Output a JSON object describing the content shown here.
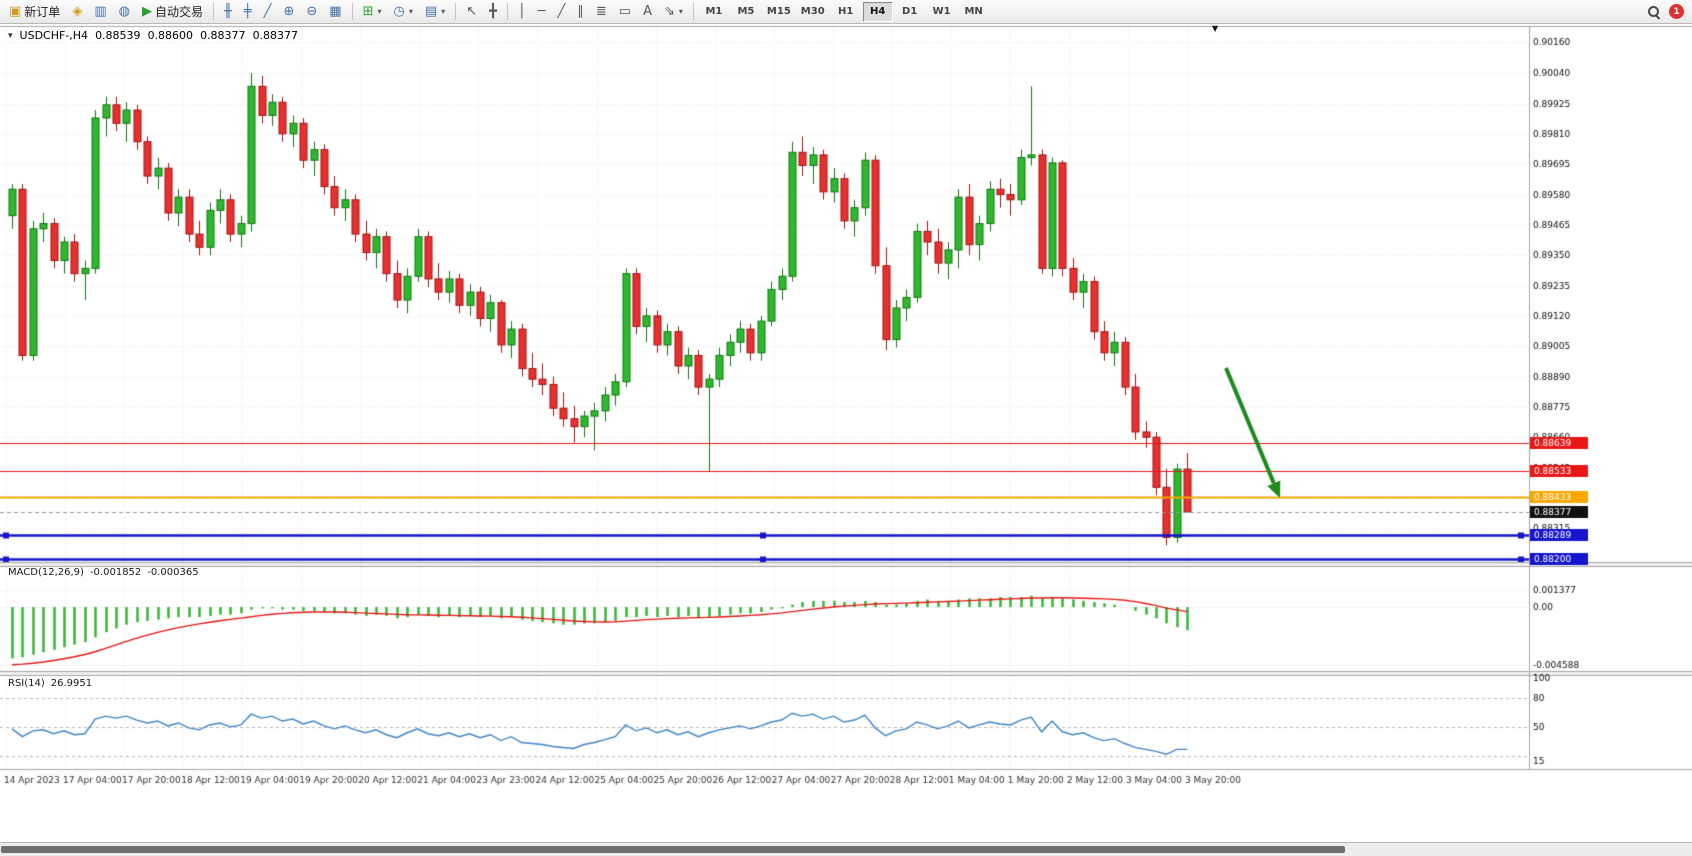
{
  "toolbar": {
    "new_order_label": "新订单",
    "auto_trading_label": "自动交易",
    "timeframes": [
      "M1",
      "M5",
      "M15",
      "M30",
      "H1",
      "H4",
      "D1",
      "W1",
      "MN"
    ],
    "active_timeframe": "H4",
    "notification_count": "1",
    "icons": {
      "new_order": "▣",
      "metaeditor": "◈",
      "charts": "▥",
      "market_watch": "◍",
      "autoplay": "▶",
      "bar_chart": "╫",
      "candle_chart": "╪",
      "line_chart": "╱",
      "zoom_in": "⊕",
      "zoom_out": "⊖",
      "tile_windows": "▦",
      "indicators": "⊞",
      "periods": "◷",
      "templates": "▤",
      "cursor": "↖",
      "crosshair": "╋",
      "vertical_line": "│",
      "horizontal_line": "─",
      "trendline": "╱",
      "channel": "∥",
      "fibonacci": "≣",
      "shapes": "▭",
      "text_tool": "A",
      "arrows_tool": "⇘",
      "dropdown": "▾"
    }
  },
  "chart": {
    "symbol_period": "USDCHF-,H4",
    "ohlc": {
      "open": "0.88539",
      "high": "0.88600",
      "low": "0.88377",
      "close": "0.88377"
    },
    "shift_marker": "▼",
    "price_scale_labels": [
      "0.90160",
      "0.90040",
      "0.89925",
      "0.89810",
      "0.89695",
      "0.89580",
      "0.89465",
      "0.89350",
      "0.89235",
      "0.89120",
      "0.89005",
      "0.88890",
      "0.88775",
      "0.88660",
      "0.88545",
      "0.88430",
      "0.88315",
      "0.88200"
    ],
    "time_labels": [
      "14 Apr 2023",
      "17 Apr 04:00",
      "17 Apr 20:00",
      "18 Apr 12:00",
      "19 Apr 04:00",
      "19 Apr 20:00",
      "20 Apr 12:00",
      "21 Apr 04:00",
      "23 Apr 23:00",
      "24 Apr 12:00",
      "25 Apr 04:00",
      "25 Apr 20:00",
      "26 Apr 12:00",
      "27 Apr 04:00",
      "27 Apr 20:00",
      "28 Apr 12:00",
      "1 May 04:00",
      "1 May 20:00",
      "2 May 12:00",
      "3 May 04:00",
      "3 May 20:00"
    ],
    "hlines": [
      {
        "price": 0.88639,
        "label": "0.88639",
        "color": "#e81717",
        "width": 1,
        "handles": false
      },
      {
        "price": 0.88533,
        "label": "0.88533",
        "color": "#e81717",
        "width": 1,
        "handles": false
      },
      {
        "price": 0.88433,
        "label": "0.88433",
        "color": "#f7a800",
        "width": 2,
        "handles": false
      },
      {
        "price": 0.88289,
        "label": "0.88289",
        "color": "#1515cc",
        "width": 2.5,
        "handles": true
      },
      {
        "price": 0.882,
        "label": "0.88200",
        "color": "#1515cc",
        "width": 2.5,
        "handles": true
      }
    ],
    "current_price": {
      "value": 0.88377,
      "label": "0.88377",
      "badge_color": "#101010"
    },
    "arrow": {
      "color": "#1c8a1c",
      "direction": "down-right"
    }
  },
  "macd": {
    "label": "MACD(12,26,9)",
    "main_value": "-0.001852",
    "signal_value": "-0.000365",
    "scale_labels": [
      "0.001377",
      "0.00",
      "-0.004588"
    ],
    "histogram_color": "#3cb83c",
    "signal_color": "#e81717"
  },
  "rsi": {
    "label": "RSI(14)",
    "value": "26.9951",
    "scale_labels": [
      "100",
      "80",
      "50",
      "15"
    ],
    "levels": [
      80,
      50,
      20
    ],
    "line_color": "#3f86c8"
  },
  "chart_data": {
    "type": "candlestick",
    "symbol": "USDCHF",
    "period": "H4",
    "ylim": [
      0.88187,
      0.90215
    ],
    "up_color": "#2eb82e",
    "up_border": "#137813",
    "down_color": "#e83030",
    "down_border": "#a31515",
    "candles": [
      [
        0.895,
        0.8962,
        0.8945,
        0.896
      ],
      [
        0.896,
        0.8962,
        0.8895,
        0.8897
      ],
      [
        0.8897,
        0.8948,
        0.8895,
        0.8945
      ],
      [
        0.8945,
        0.8951,
        0.894,
        0.8947
      ],
      [
        0.8947,
        0.8949,
        0.893,
        0.8933
      ],
      [
        0.8933,
        0.8942,
        0.8928,
        0.894
      ],
      [
        0.894,
        0.8943,
        0.8925,
        0.8928
      ],
      [
        0.8928,
        0.8933,
        0.8918,
        0.893
      ],
      [
        0.893,
        0.899,
        0.8928,
        0.8987
      ],
      [
        0.8987,
        0.8995,
        0.898,
        0.8992
      ],
      [
        0.8992,
        0.8995,
        0.8982,
        0.8985
      ],
      [
        0.8985,
        0.8993,
        0.8978,
        0.899
      ],
      [
        0.899,
        0.8992,
        0.8975,
        0.8978
      ],
      [
        0.8978,
        0.898,
        0.8962,
        0.8965
      ],
      [
        0.8965,
        0.8972,
        0.896,
        0.8968
      ],
      [
        0.8968,
        0.897,
        0.8948,
        0.8951
      ],
      [
        0.8951,
        0.896,
        0.8946,
        0.8957
      ],
      [
        0.8957,
        0.896,
        0.894,
        0.8943
      ],
      [
        0.8943,
        0.8948,
        0.8935,
        0.8938
      ],
      [
        0.8938,
        0.8955,
        0.8935,
        0.8952
      ],
      [
        0.8952,
        0.896,
        0.8947,
        0.8956
      ],
      [
        0.8956,
        0.8958,
        0.894,
        0.8943
      ],
      [
        0.8943,
        0.895,
        0.8938,
        0.8947
      ],
      [
        0.8947,
        0.9004,
        0.8944,
        0.8999
      ],
      [
        0.8999,
        0.9003,
        0.8985,
        0.8988
      ],
      [
        0.8988,
        0.8996,
        0.8984,
        0.8993
      ],
      [
        0.8993,
        0.8995,
        0.8978,
        0.8981
      ],
      [
        0.8981,
        0.8988,
        0.8976,
        0.8985
      ],
      [
        0.8985,
        0.8987,
        0.8968,
        0.8971
      ],
      [
        0.8971,
        0.8978,
        0.8965,
        0.8975
      ],
      [
        0.8975,
        0.8977,
        0.8958,
        0.8961
      ],
      [
        0.8961,
        0.8965,
        0.895,
        0.8953
      ],
      [
        0.8953,
        0.896,
        0.8948,
        0.8956
      ],
      [
        0.8956,
        0.8958,
        0.894,
        0.8943
      ],
      [
        0.8943,
        0.8948,
        0.8933,
        0.8936
      ],
      [
        0.8936,
        0.8945,
        0.893,
        0.8942
      ],
      [
        0.8942,
        0.8944,
        0.8925,
        0.8928
      ],
      [
        0.8928,
        0.8933,
        0.8915,
        0.8918
      ],
      [
        0.8918,
        0.893,
        0.8913,
        0.8927
      ],
      [
        0.8927,
        0.8945,
        0.8925,
        0.8942
      ],
      [
        0.8942,
        0.8944,
        0.8923,
        0.8926
      ],
      [
        0.8926,
        0.8932,
        0.8918,
        0.8921
      ],
      [
        0.8921,
        0.8929,
        0.8917,
        0.8926
      ],
      [
        0.8926,
        0.8928,
        0.8913,
        0.8916
      ],
      [
        0.8916,
        0.8924,
        0.8912,
        0.8921
      ],
      [
        0.8921,
        0.8923,
        0.8908,
        0.8911
      ],
      [
        0.8911,
        0.892,
        0.8906,
        0.8917
      ],
      [
        0.8917,
        0.8918,
        0.8898,
        0.8901
      ],
      [
        0.8901,
        0.891,
        0.8896,
        0.8907
      ],
      [
        0.8907,
        0.8909,
        0.8889,
        0.8892
      ],
      [
        0.8892,
        0.8898,
        0.8885,
        0.8888
      ],
      [
        0.8888,
        0.8894,
        0.8882,
        0.8886
      ],
      [
        0.8886,
        0.8889,
        0.8874,
        0.8877
      ],
      [
        0.8877,
        0.8883,
        0.887,
        0.8873
      ],
      [
        0.8873,
        0.8878,
        0.8864,
        0.887
      ],
      [
        0.887,
        0.8876,
        0.8866,
        0.8874
      ],
      [
        0.8874,
        0.8879,
        0.8861,
        0.8876
      ],
      [
        0.8876,
        0.8885,
        0.8872,
        0.8882
      ],
      [
        0.8882,
        0.889,
        0.8878,
        0.8887
      ],
      [
        0.8887,
        0.893,
        0.8885,
        0.8928
      ],
      [
        0.8928,
        0.893,
        0.8905,
        0.8908
      ],
      [
        0.8908,
        0.8915,
        0.8902,
        0.8912
      ],
      [
        0.8912,
        0.8914,
        0.8898,
        0.8901
      ],
      [
        0.8901,
        0.8909,
        0.8897,
        0.8906
      ],
      [
        0.8906,
        0.8908,
        0.889,
        0.8893
      ],
      [
        0.8893,
        0.89,
        0.8888,
        0.8897
      ],
      [
        0.8897,
        0.8899,
        0.8882,
        0.8885
      ],
      [
        0.8885,
        0.889,
        0.8853,
        0.8888
      ],
      [
        0.8888,
        0.89,
        0.8885,
        0.8897
      ],
      [
        0.8897,
        0.8905,
        0.8893,
        0.8902
      ],
      [
        0.8902,
        0.891,
        0.8898,
        0.8907
      ],
      [
        0.8907,
        0.8909,
        0.8895,
        0.8898
      ],
      [
        0.8898,
        0.8912,
        0.8895,
        0.891
      ],
      [
        0.891,
        0.8925,
        0.8908,
        0.8922
      ],
      [
        0.8922,
        0.893,
        0.8918,
        0.8927
      ],
      [
        0.8927,
        0.8978,
        0.8925,
        0.8974
      ],
      [
        0.8974,
        0.898,
        0.8965,
        0.8969
      ],
      [
        0.8969,
        0.8976,
        0.8962,
        0.8973
      ],
      [
        0.8973,
        0.8975,
        0.8956,
        0.8959
      ],
      [
        0.8959,
        0.8968,
        0.8955,
        0.8964
      ],
      [
        0.8964,
        0.8966,
        0.8945,
        0.8948
      ],
      [
        0.8948,
        0.8956,
        0.8942,
        0.8953
      ],
      [
        0.8953,
        0.8974,
        0.895,
        0.8971
      ],
      [
        0.8971,
        0.8973,
        0.8928,
        0.8931
      ],
      [
        0.8931,
        0.8938,
        0.8899,
        0.8903
      ],
      [
        0.8903,
        0.8918,
        0.89,
        0.8915
      ],
      [
        0.8915,
        0.8922,
        0.891,
        0.8919
      ],
      [
        0.8919,
        0.8947,
        0.8917,
        0.8944
      ],
      [
        0.8944,
        0.8948,
        0.8935,
        0.894
      ],
      [
        0.894,
        0.8945,
        0.8928,
        0.8932
      ],
      [
        0.8932,
        0.894,
        0.8926,
        0.8937
      ],
      [
        0.8937,
        0.896,
        0.893,
        0.8957
      ],
      [
        0.8957,
        0.8962,
        0.8935,
        0.8939
      ],
      [
        0.8939,
        0.895,
        0.8933,
        0.8947
      ],
      [
        0.8947,
        0.8963,
        0.8944,
        0.896
      ],
      [
        0.896,
        0.8964,
        0.8953,
        0.8958
      ],
      [
        0.8958,
        0.8962,
        0.895,
        0.8956
      ],
      [
        0.8956,
        0.8975,
        0.8954,
        0.8972
      ],
      [
        0.8972,
        0.8999,
        0.8969,
        0.8973
      ],
      [
        0.8973,
        0.8975,
        0.8928,
        0.893
      ],
      [
        0.893,
        0.8972,
        0.8927,
        0.897
      ],
      [
        0.897,
        0.8971,
        0.8927,
        0.893
      ],
      [
        0.893,
        0.8934,
        0.8918,
        0.8921
      ],
      [
        0.8921,
        0.8928,
        0.8915,
        0.8925
      ],
      [
        0.8925,
        0.8927,
        0.8903,
        0.8906
      ],
      [
        0.8906,
        0.891,
        0.8895,
        0.8898
      ],
      [
        0.8898,
        0.8906,
        0.8893,
        0.8902
      ],
      [
        0.8902,
        0.8904,
        0.8882,
        0.8885
      ],
      [
        0.8885,
        0.889,
        0.8865,
        0.8868
      ],
      [
        0.8868,
        0.8872,
        0.8862,
        0.8866
      ],
      [
        0.8866,
        0.8868,
        0.8844,
        0.8847
      ],
      [
        0.8847,
        0.8854,
        0.8825,
        0.8828
      ],
      [
        0.8828,
        0.8856,
        0.8826,
        0.88539
      ],
      [
        0.88539,
        0.886,
        0.88377,
        0.88377
      ]
    ],
    "macd_histogram": [
      -0.0041,
      -0.004,
      -0.0038,
      -0.0036,
      -0.0034,
      -0.0032,
      -0.003,
      -0.0028,
      -0.0024,
      -0.002,
      -0.0017,
      -0.0014,
      -0.0012,
      -0.0011,
      -0.001,
      -0.0009,
      -0.0008,
      -0.0008,
      -0.0008,
      -0.0007,
      -0.0006,
      -0.0006,
      -0.0005,
      -0.0002,
      -0.0001,
      -0.0001,
      -0.0002,
      -0.0002,
      -0.0003,
      -0.0003,
      -0.0004,
      -0.0005,
      -0.0005,
      -0.0006,
      -0.0007,
      -0.0006,
      -0.0007,
      -0.0009,
      -0.0008,
      -0.0006,
      -0.0007,
      -0.0008,
      -0.0007,
      -0.0008,
      -0.0007,
      -0.0008,
      -0.0007,
      -0.0009,
      -0.0008,
      -0.001,
      -0.0011,
      -0.0012,
      -0.0013,
      -0.0014,
      -0.0014,
      -0.0013,
      -0.0013,
      -0.0012,
      -0.0011,
      -0.0008,
      -0.0008,
      -0.0007,
      -0.0008,
      -0.0007,
      -0.0008,
      -0.0007,
      -0.0008,
      -0.0008,
      -0.0007,
      -0.0006,
      -0.0005,
      -0.0005,
      -0.0004,
      -0.0002,
      -0.0001,
      0.0002,
      0.0004,
      0.0005,
      0.0005,
      0.0005,
      0.0004,
      0.0004,
      0.0005,
      0.0004,
      0.0002,
      0.0002,
      0.0003,
      0.0005,
      0.0006,
      0.0005,
      0.0005,
      0.0006,
      0.0007,
      0.0007,
      0.0007,
      0.0008,
      0.0008,
      0.0008,
      0.0009,
      0.0007,
      0.0008,
      0.0007,
      0.0006,
      0.0005,
      0.0004,
      0.0003,
      0.0002,
      0.0,
      -0.0003,
      -0.0006,
      -0.0009,
      -0.0013,
      -0.0016,
      -0.001852
    ],
    "macd_signal": [
      -0.0046,
      -0.00455,
      -0.00448,
      -0.00438,
      -0.00426,
      -0.00412,
      -0.00396,
      -0.00378,
      -0.00356,
      -0.0033,
      -0.00302,
      -0.00274,
      -0.00248,
      -0.00224,
      -0.00202,
      -0.00182,
      -0.00164,
      -0.00148,
      -0.00134,
      -0.00121,
      -0.00109,
      -0.00098,
      -0.00088,
      -0.00077,
      -0.00066,
      -0.00057,
      -0.0005,
      -0.00045,
      -0.00041,
      -0.00039,
      -0.00038,
      -0.00039,
      -0.00041,
      -0.00044,
      -0.00048,
      -0.00051,
      -0.00054,
      -0.00058,
      -0.00061,
      -0.00062,
      -0.00063,
      -0.00065,
      -0.00066,
      -0.00068,
      -0.00069,
      -0.00071,
      -0.00072,
      -0.00075,
      -0.00077,
      -0.00081,
      -0.00086,
      -0.00092,
      -0.00098,
      -0.00105,
      -0.00111,
      -0.00115,
      -0.00118,
      -0.00119,
      -0.00118,
      -0.00112,
      -0.00106,
      -0.001,
      -0.00096,
      -0.00092,
      -0.00089,
      -0.00086,
      -0.00084,
      -0.00082,
      -0.00079,
      -0.00075,
      -0.00071,
      -0.00066,
      -0.00061,
      -0.00054,
      -0.00046,
      -0.00036,
      -0.00026,
      -0.00016,
      -7e-05,
      1e-05,
      8e-05,
      0.00014,
      0.0002,
      0.00025,
      0.00028,
      0.0003,
      0.00032,
      0.00035,
      0.00039,
      0.00042,
      0.00045,
      0.00048,
      0.00052,
      0.00056,
      0.00059,
      0.00063,
      0.00066,
      0.00069,
      0.00073,
      0.00073,
      0.00074,
      0.00074,
      0.00073,
      0.00071,
      0.00069,
      0.00066,
      0.00062,
      0.00055,
      0.00044,
      0.00029,
      0.00012,
      -8e-05,
      -0.00022,
      -0.000365
    ],
    "rsi": [
      48,
      40,
      46,
      47,
      43,
      46,
      42,
      43,
      58,
      61,
      59,
      61,
      57,
      54,
      56,
      51,
      54,
      49,
      47,
      52,
      54,
      50,
      52,
      63,
      59,
      61,
      56,
      58,
      53,
      56,
      51,
      48,
      51,
      47,
      44,
      47,
      42,
      39,
      44,
      48,
      43,
      41,
      44,
      40,
      43,
      39,
      42,
      36,
      40,
      34,
      33,
      32,
      30,
      29,
      28,
      32,
      34,
      37,
      40,
      52,
      46,
      49,
      44,
      47,
      42,
      45,
      40,
      44,
      47,
      49,
      51,
      48,
      51,
      55,
      57,
      64,
      61,
      63,
      58,
      61,
      55,
      57,
      62,
      49,
      41,
      46,
      48,
      55,
      52,
      48,
      51,
      56,
      49,
      52,
      55,
      53,
      52,
      57,
      60,
      45,
      56,
      45,
      42,
      44,
      39,
      36,
      38,
      33,
      29,
      27,
      25,
      22,
      27,
      26.9951
    ]
  }
}
